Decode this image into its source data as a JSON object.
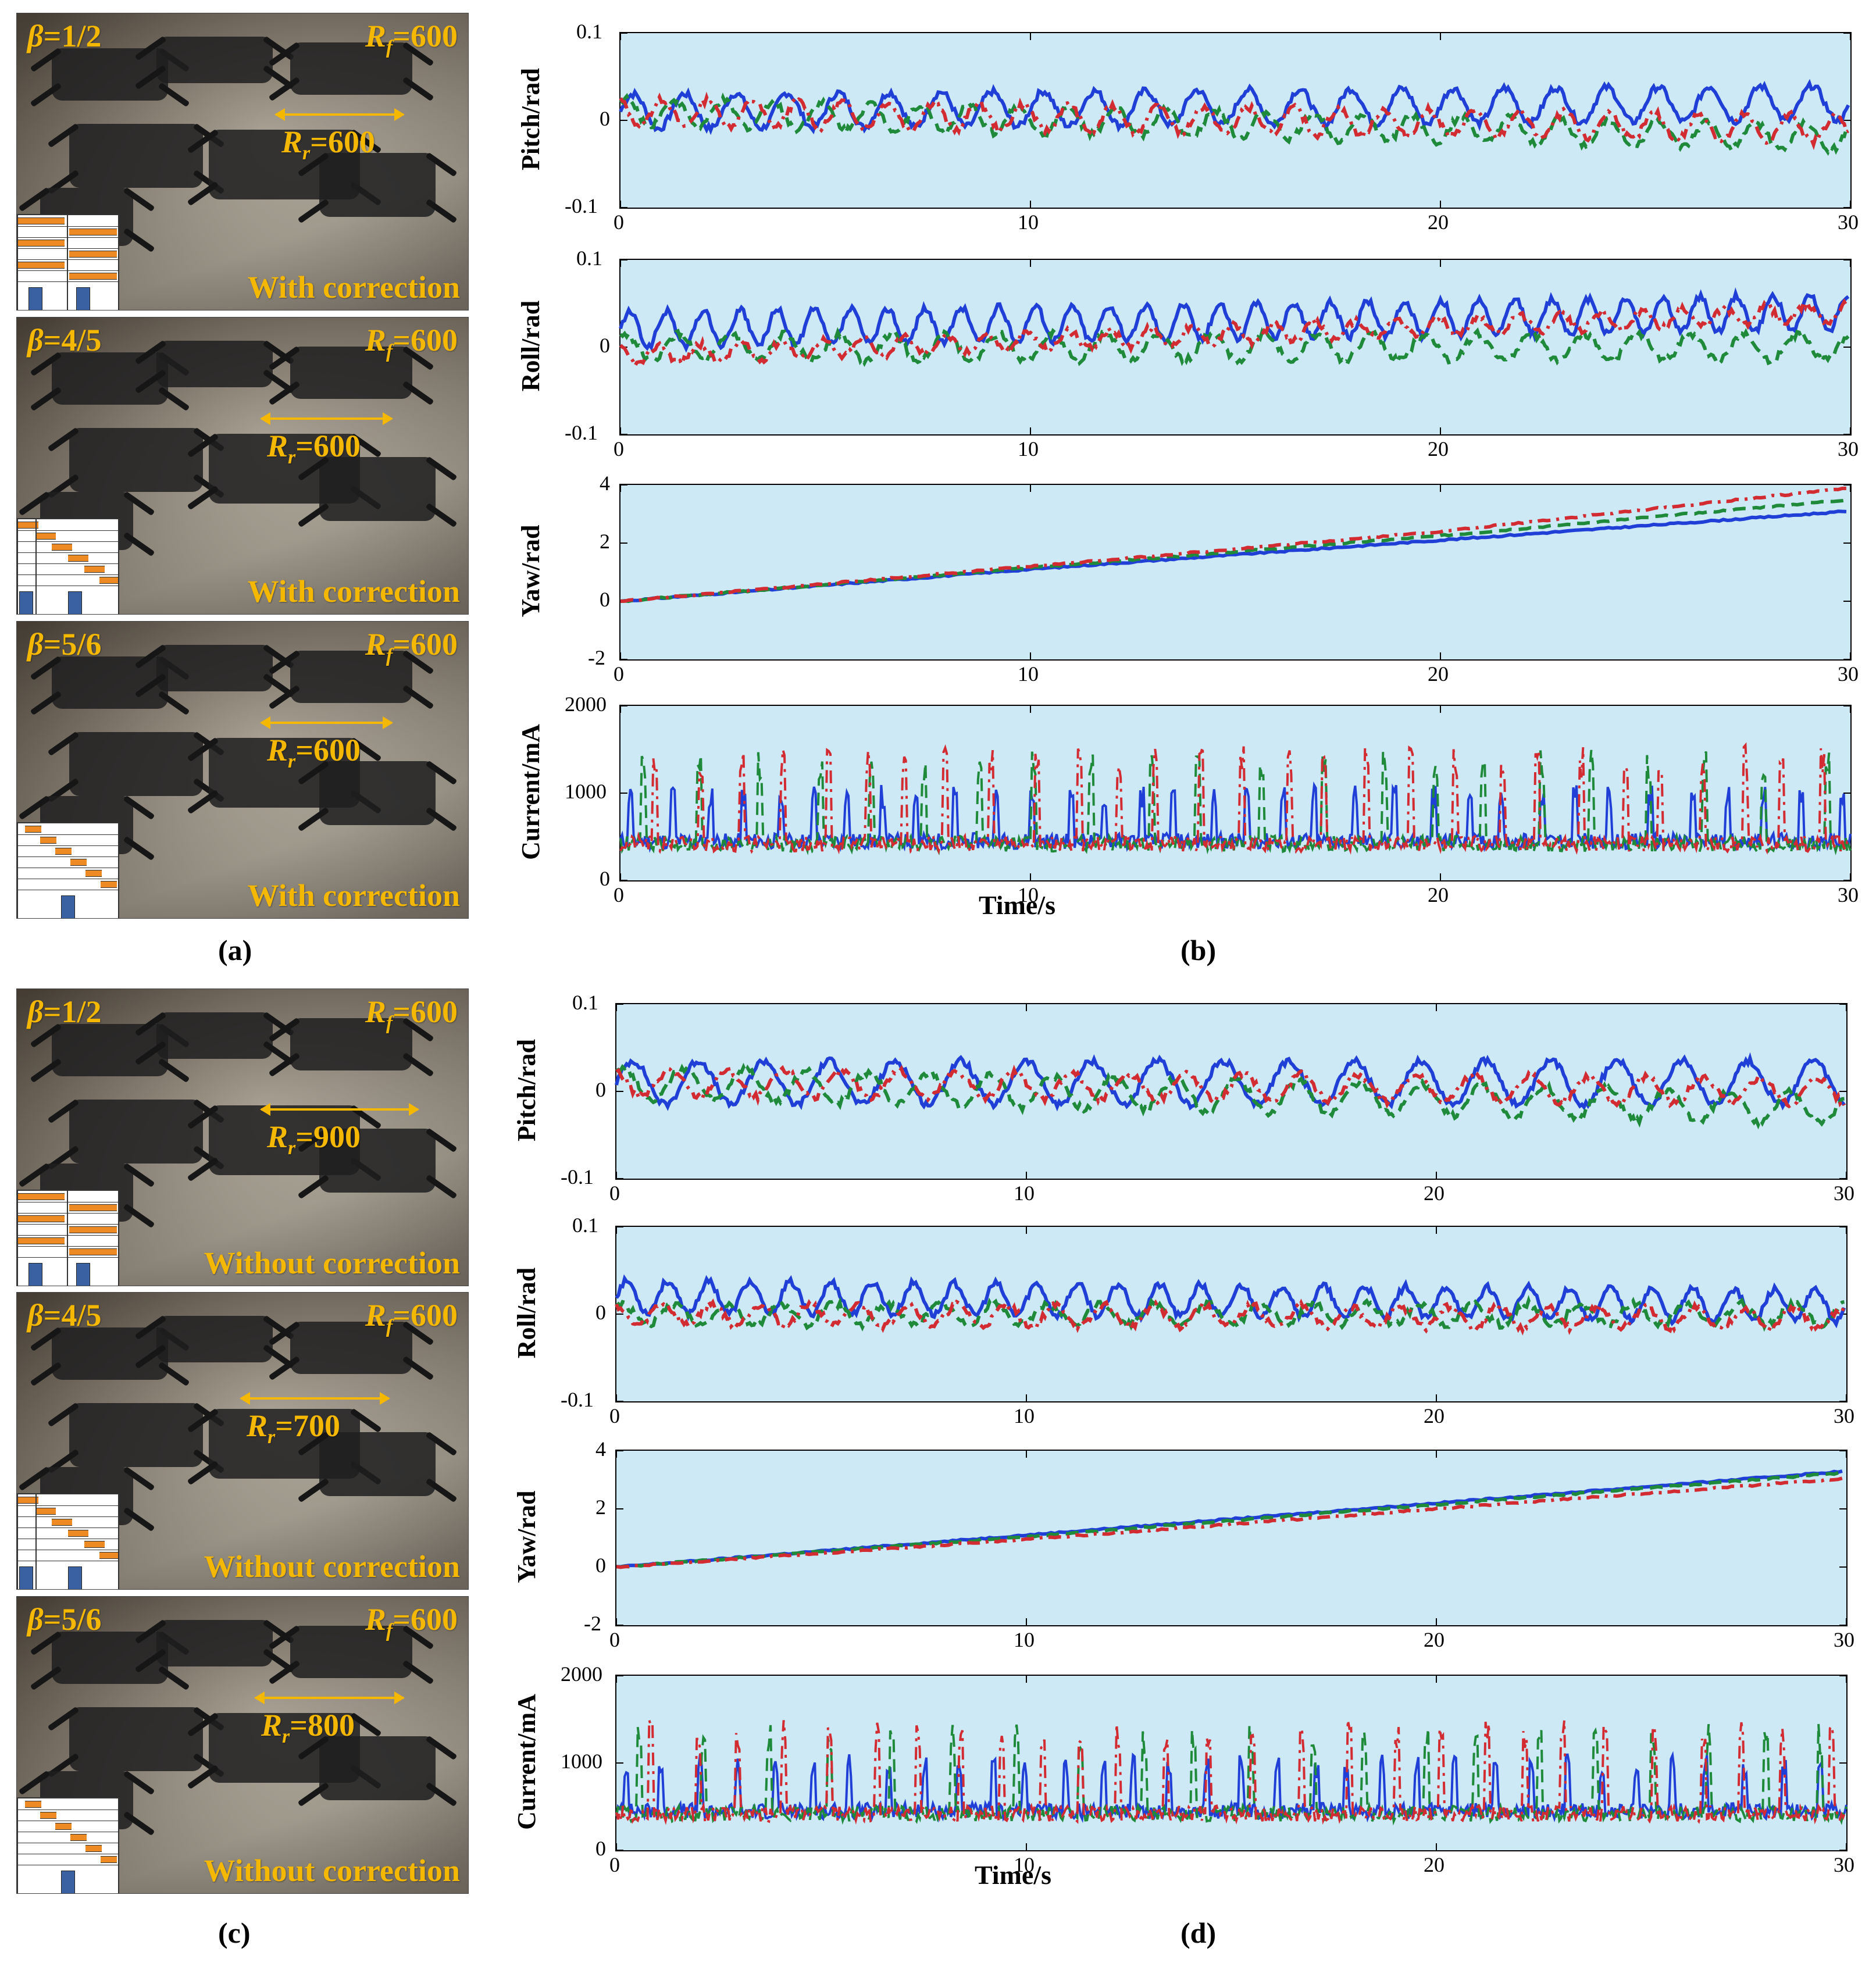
{
  "panels": {
    "a": {
      "label": "(a)"
    },
    "b": {
      "label": "(b)"
    },
    "c": {
      "label": "(c)"
    },
    "d": {
      "label": "(d)"
    }
  },
  "photos": [
    {
      "beta": "=1/2",
      "rf": "=600",
      "rr": "=600",
      "caption": "With correction",
      "gait": "half"
    },
    {
      "beta": "=4/5",
      "rf": "=600",
      "rr": "=600",
      "caption": "With correction",
      "gait": "fifth"
    },
    {
      "beta": "=5/6",
      "rf": "=600",
      "rr": "=600",
      "caption": "With correction",
      "gait": "sixth"
    },
    {
      "beta": "=1/2",
      "rf": "=600",
      "rr": "=900",
      "caption": "Without correction",
      "gait": "half"
    },
    {
      "beta": "=4/5",
      "rf": "=600",
      "rr": "=700",
      "caption": "Without correction",
      "gait": "fifth"
    },
    {
      "beta": "=5/6",
      "rf": "=600",
      "rr": "=800",
      "caption": "Without correction",
      "gait": "sixth"
    }
  ],
  "symbols": {
    "beta": "β",
    "rf_main": "R",
    "rf_sub": "f",
    "rr_main": "R",
    "rr_sub": "r"
  },
  "chart_data": [
    {
      "panel": "(b)",
      "type": "line",
      "xlabel": "Time/s",
      "subplots": [
        {
          "ylabel": "Pitch/rad",
          "ylim": [
            -0.1,
            0.1
          ],
          "yticks": [
            "0.1",
            "0",
            "-0.1"
          ],
          "xlim": [
            0,
            30
          ],
          "xticks": [
            "0",
            "10",
            "20",
            "30"
          ],
          "series": [
            {
              "color": "#1f3fd6",
              "style": "solid",
              "base": [
                0.01,
                0.02
              ],
              "amp": 0.02,
              "period": 1.25,
              "drift": 0.014
            },
            {
              "color": "#1e8a3a",
              "style": "dashed",
              "base": [
                0.01,
                -0.02
              ],
              "amp": 0.015,
              "period": 1.2,
              "drift": -0.01
            },
            {
              "color": "#d22c32",
              "style": "dashdot",
              "base": [
                0.01,
                -0.01
              ],
              "amp": 0.015,
              "period": 1.1,
              "drift": -0.025
            }
          ]
        },
        {
          "ylabel": "Roll/rad",
          "ylim": [
            -0.1,
            0.1
          ],
          "yticks": [
            "0.1",
            "0",
            "-0.1"
          ],
          "xlim": [
            0,
            30
          ],
          "xticks": [
            "0",
            "10",
            "20",
            "30"
          ],
          "series": [
            {
              "color": "#1f3fd6",
              "style": "solid",
              "base": [
                0.02,
                0.04
              ],
              "amp": 0.02,
              "period": 0.9,
              "drift": 0
            },
            {
              "color": "#1e8a3a",
              "style": "dashed",
              "base": [
                0.0,
                0.0
              ],
              "amp": 0.015,
              "period": 1.3,
              "drift": 0
            },
            {
              "color": "#d22c32",
              "style": "dashdot",
              "base": [
                -0.01,
                0.04
              ],
              "amp": 0.01,
              "period": 1.0,
              "drift": 0
            }
          ]
        },
        {
          "ylabel": "Yaw/rad",
          "ylim": [
            -2,
            4
          ],
          "yticks": [
            "4",
            "2",
            "0",
            "-2"
          ],
          "xlim": [
            0,
            30
          ],
          "xticks": [
            "0",
            "10",
            "20",
            "30"
          ],
          "series": [
            {
              "color": "#1f3fd6",
              "style": "solid",
              "x": [
                0,
                10,
                20,
                30
              ],
              "y": [
                0,
                1.1,
                2.1,
                3.1
              ]
            },
            {
              "color": "#1e8a3a",
              "style": "dashed",
              "x": [
                0,
                10,
                20,
                30
              ],
              "y": [
                0,
                1.15,
                2.25,
                3.5
              ]
            },
            {
              "color": "#d22c32",
              "style": "dashdot",
              "x": [
                0,
                10,
                20,
                30
              ],
              "y": [
                0,
                1.2,
                2.4,
                3.9
              ]
            }
          ]
        },
        {
          "ylabel": "Current/mA",
          "ylim": [
            0,
            2000
          ],
          "yticks": [
            "2000",
            "1000",
            "0"
          ],
          "xlim": [
            0,
            30
          ],
          "xticks": [
            "0",
            "10",
            "20",
            "30"
          ],
          "series": [
            {
              "color": "#1f3fd6",
              "style": "solid",
              "base": 450,
              "peak": 1100,
              "period": 0.9
            },
            {
              "color": "#1e8a3a",
              "style": "dashed",
              "base": 420,
              "peak": 1500,
              "period": 1.35
            },
            {
              "color": "#d22c32",
              "style": "dashdot",
              "base": 420,
              "peak": 1550,
              "period": 1.0
            }
          ]
        }
      ]
    },
    {
      "panel": "(d)",
      "type": "line",
      "xlabel": "Time/s",
      "subplots": [
        {
          "ylabel": "Pitch/rad",
          "ylim": [
            -0.1,
            0.1
          ],
          "yticks": [
            "0.1",
            "0",
            "-0.1"
          ],
          "xlim": [
            0,
            30
          ],
          "xticks": [
            "0",
            "10",
            "20",
            "30"
          ],
          "series": [
            {
              "color": "#1f3fd6",
              "style": "solid",
              "base": [
                0.01,
                0.01
              ],
              "amp": 0.025,
              "period": 1.6,
              "drift": 0
            },
            {
              "color": "#1e8a3a",
              "style": "dashed",
              "base": [
                0.01,
                -0.02
              ],
              "amp": 0.018,
              "period": 1.5,
              "drift": 0
            },
            {
              "color": "#d22c32",
              "style": "dashdot",
              "base": [
                0.01,
                0.0
              ],
              "amp": 0.015,
              "period": 1.4,
              "drift": 0
            }
          ]
        },
        {
          "ylabel": "Roll/rad",
          "ylim": [
            -0.1,
            0.1
          ],
          "yticks": [
            "0.1",
            "0",
            "-0.1"
          ],
          "xlim": [
            0,
            30
          ],
          "xticks": [
            "0",
            "10",
            "20",
            "30"
          ],
          "series": [
            {
              "color": "#1f3fd6",
              "style": "solid",
              "base": [
                0.02,
                0.01
              ],
              "amp": 0.018,
              "period": 1.0,
              "drift": 0
            },
            {
              "color": "#1e8a3a",
              "style": "dashed",
              "base": [
                0.0,
                0.0
              ],
              "amp": 0.012,
              "period": 1.3,
              "drift": 0
            },
            {
              "color": "#d22c32",
              "style": "dashdot",
              "base": [
                0.0,
                -0.005
              ],
              "amp": 0.012,
              "period": 1.2,
              "drift": 0
            }
          ]
        },
        {
          "ylabel": "Yaw/rad",
          "ylim": [
            -2,
            4
          ],
          "yticks": [
            "4",
            "2",
            "0",
            "-2"
          ],
          "xlim": [
            0,
            30
          ],
          "xticks": [
            "0",
            "10",
            "20",
            "30"
          ],
          "series": [
            {
              "color": "#1f3fd6",
              "style": "solid",
              "x": [
                0,
                10,
                20,
                30
              ],
              "y": [
                0,
                1.1,
                2.2,
                3.3
              ]
            },
            {
              "color": "#1e8a3a",
              "style": "dashed",
              "x": [
                0,
                10,
                20,
                30
              ],
              "y": [
                0,
                1.05,
                2.15,
                3.25
              ]
            },
            {
              "color": "#d22c32",
              "style": "dashdot",
              "x": [
                0,
                10,
                20,
                30
              ],
              "y": [
                0,
                0.95,
                2.0,
                3.05
              ]
            }
          ]
        },
        {
          "ylabel": "Current/mA",
          "ylim": [
            0,
            2000
          ],
          "yticks": [
            "2000",
            "1000",
            "0"
          ],
          "xlim": [
            0,
            30
          ],
          "xticks": [
            "0",
            "10",
            "20",
            "30"
          ],
          "series": [
            {
              "color": "#1f3fd6",
              "style": "solid",
              "base": 450,
              "peak": 1100,
              "period": 0.85
            },
            {
              "color": "#1e8a3a",
              "style": "dashed",
              "base": 420,
              "peak": 1450,
              "period": 1.4
            },
            {
              "color": "#d22c32",
              "style": "dashdot",
              "base": 420,
              "peak": 1500,
              "period": 1.05
            }
          ]
        }
      ]
    }
  ]
}
